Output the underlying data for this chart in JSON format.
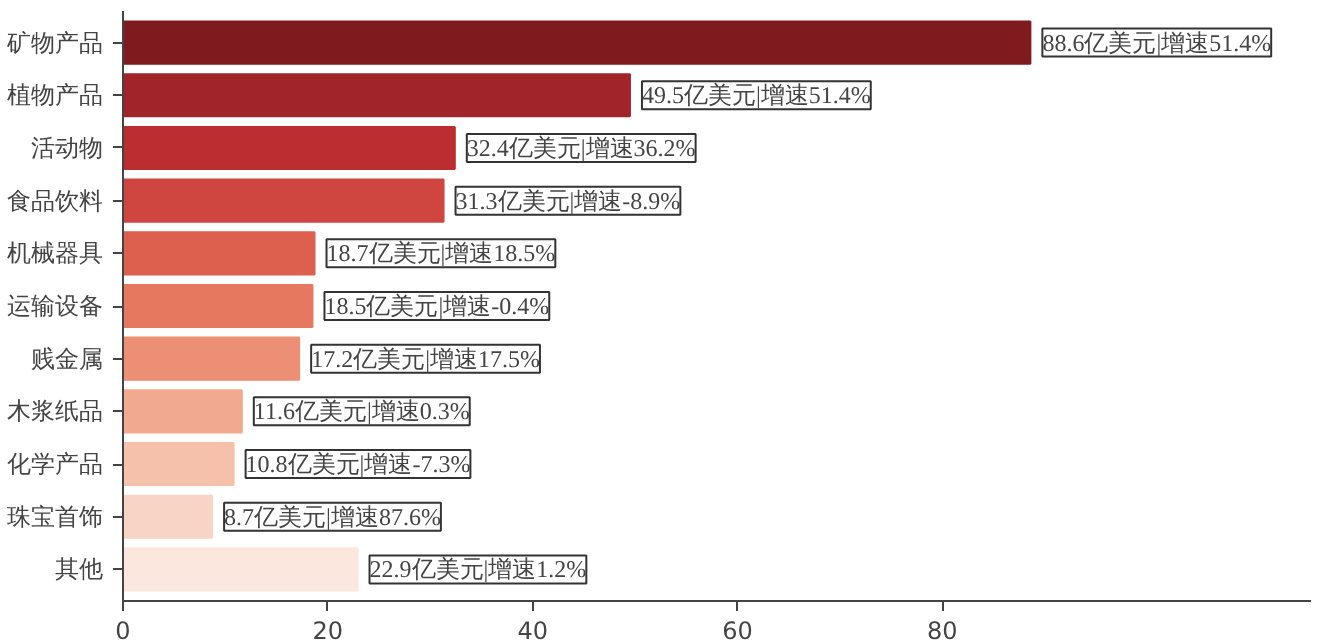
{
  "chart_data": {
    "type": "bar",
    "orientation": "horizontal",
    "categories": [
      "矿物产品",
      "植物产品",
      "活动物",
      "食品饮料",
      "机械器具",
      "运输设备",
      "贱金属",
      "木浆纸品",
      "化学产品",
      "珠宝首饰",
      "其他"
    ],
    "values": [
      88.6,
      49.5,
      32.4,
      31.3,
      18.7,
      18.5,
      17.2,
      11.6,
      10.8,
      8.7,
      22.9
    ],
    "colors": [
      "#7f1a1f",
      "#a0242a",
      "#bb2d31",
      "#cf4540",
      "#dd5f4e",
      "#e6785f",
      "#ec8f75",
      "#f1a98f",
      "#f5c1aa",
      "#f8d4c6",
      "#fbe7dd"
    ],
    "value_labels": [
      "88.6亿美元|增速51.4%",
      "49.5亿美元|增速51.4%",
      "32.4亿美元|增速36.2%",
      "31.3亿美元|增速-8.9%",
      "18.7亿美元|增速18.5%",
      "18.5亿美元|增速-0.4%",
      "17.2亿美元|增速17.5%",
      "11.6亿美元|增速0.3%",
      "10.8亿美元|增速-7.3%",
      "8.7亿美元|增速87.6%",
      "22.9亿美元|增速1.2%"
    ],
    "xlim": [
      0,
      116
    ],
    "xticks": [
      0,
      20,
      40,
      60,
      80
    ]
  }
}
